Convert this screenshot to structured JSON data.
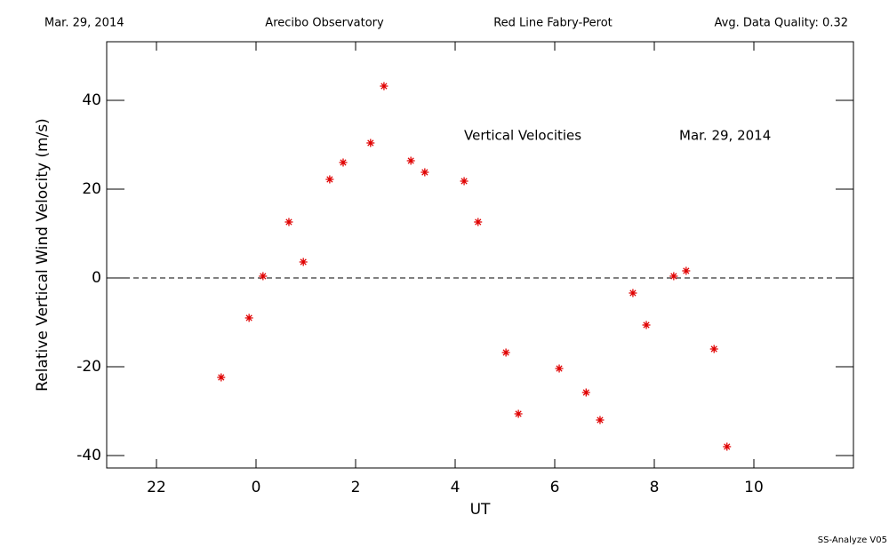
{
  "chart_data": {
    "type": "scatter",
    "header": [
      "Mar. 29, 2014",
      "Arecibo Observatory",
      "Red Line Fabry-Perot",
      "Avg. Data Quality: 0.32"
    ],
    "annotations": [
      "Vertical Velocities",
      "Mar. 29, 2014"
    ],
    "footer": "SS-Analyze V05",
    "xlabel": "UT",
    "ylabel": "Relative Vertical Wind Velocity (m/s)",
    "xlim": [
      21,
      36
    ],
    "ylim": [
      -42.8,
      53.2
    ],
    "xticks": [
      22,
      {
        "value": 24,
        "label": "0"
      },
      {
        "value": 26,
        "label": "2"
      },
      {
        "value": 28,
        "label": "4"
      },
      {
        "value": 30,
        "label": "6"
      },
      {
        "value": 32,
        "label": "8"
      },
      {
        "value": 34,
        "label": "10"
      }
    ],
    "yticks": [
      -40,
      -20,
      0,
      20,
      40
    ],
    "hline": 0,
    "color": "#e00000",
    "x": [
      23.3,
      23.86,
      24.14,
      24.66,
      24.95,
      25.48,
      25.75,
      26.3,
      26.57,
      27.11,
      27.39,
      28.18,
      28.46,
      29.02,
      29.27,
      30.09,
      30.63,
      30.91,
      31.57,
      31.84,
      32.39,
      32.64,
      33.2,
      33.46
    ],
    "values": [
      -22.4,
      -9.0,
      0.4,
      12.6,
      3.6,
      22.2,
      26.0,
      30.4,
      43.2,
      26.4,
      23.8,
      21.8,
      12.6,
      -16.8,
      -30.6,
      -20.4,
      -25.8,
      -32.0,
      -3.4,
      -10.6,
      0.4,
      1.6,
      -16.0,
      -38.0
    ]
  }
}
